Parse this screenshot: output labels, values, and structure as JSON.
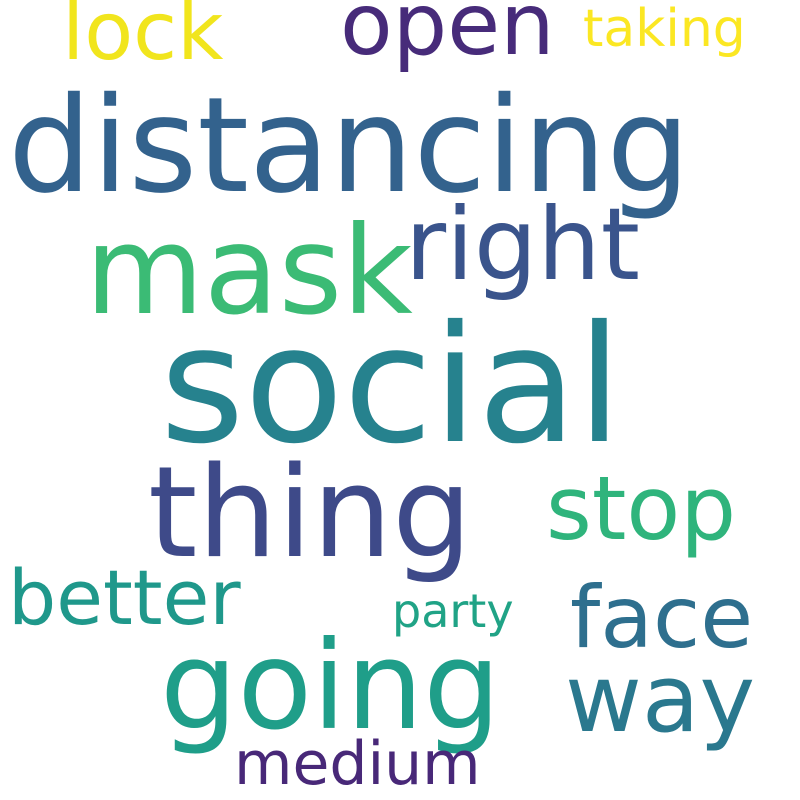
{
  "words": [
    {
      "text": "lock",
      "color": "#f1e51d"
    },
    {
      "text": "open",
      "color": "#472b7a"
    },
    {
      "text": "taking",
      "color": "#fbe723"
    },
    {
      "text": "distancing",
      "color": "#33628d"
    },
    {
      "text": "right",
      "color": "#3a548c"
    },
    {
      "text": "mask",
      "color": "#3bbb75"
    },
    {
      "text": "social",
      "color": "#26828e"
    },
    {
      "text": "thing",
      "color": "#3e4a89"
    },
    {
      "text": "stop",
      "color": "#2fb47c"
    },
    {
      "text": "better",
      "color": "#1f988b"
    },
    {
      "text": "party",
      "color": "#20a386"
    },
    {
      "text": "face",
      "color": "#2e6f8e"
    },
    {
      "text": "going",
      "color": "#1f9e89"
    },
    {
      "text": "way",
      "color": "#2a788e"
    },
    {
      "text": "medium",
      "color": "#482878"
    }
  ]
}
